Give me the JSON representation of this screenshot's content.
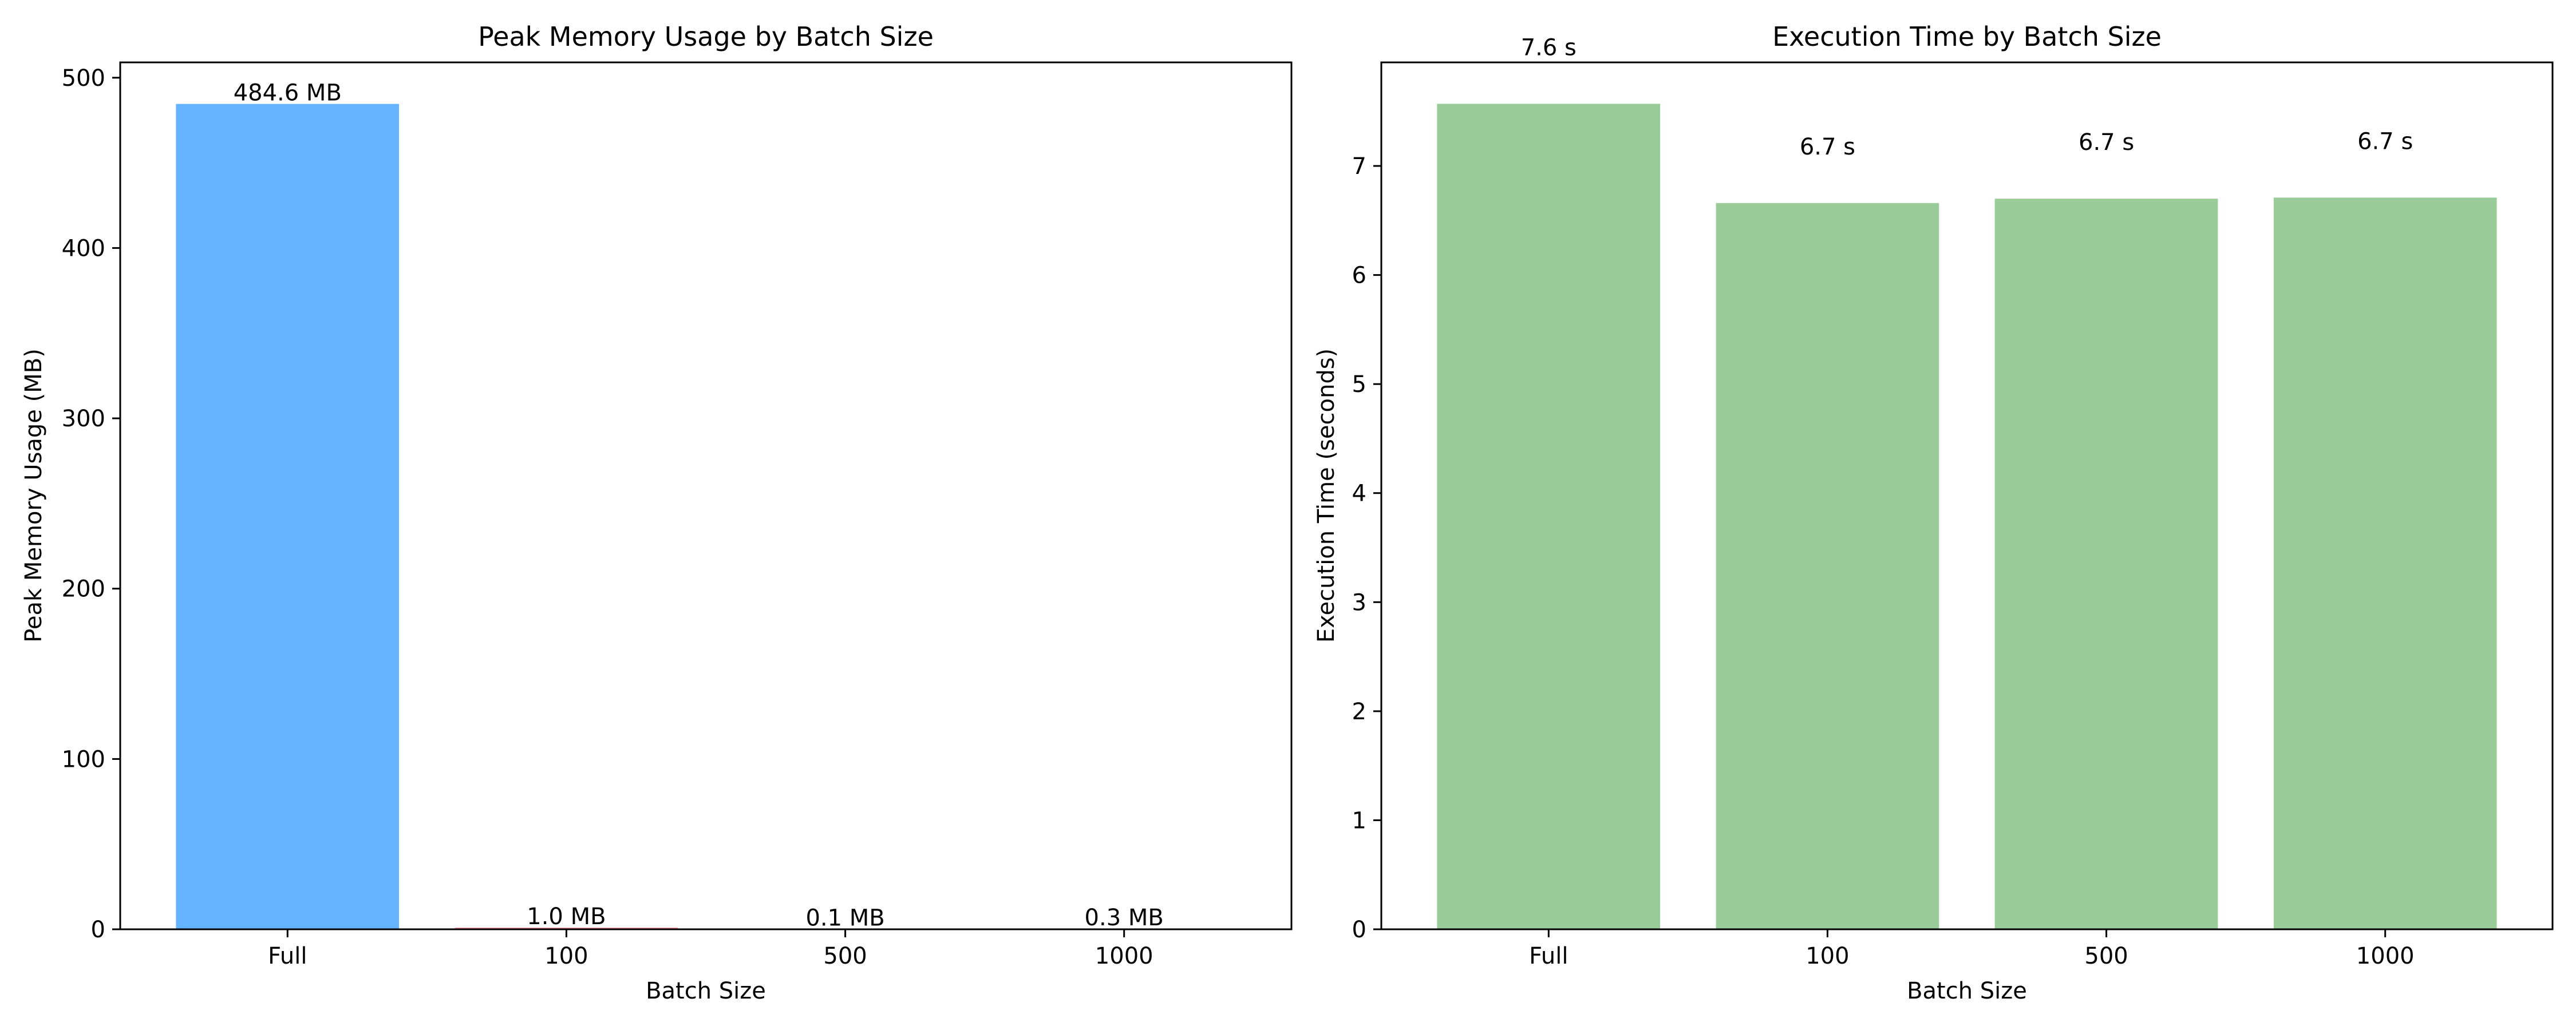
{
  "chart_data": [
    {
      "type": "bar",
      "title": "Peak Memory Usage by Batch Size",
      "xlabel": "Batch Size",
      "ylabel": "Peak Memory Usage (MB)",
      "categories": [
        "Full",
        "100",
        "500",
        "1000"
      ],
      "values": [
        484.6,
        1.0,
        0.1,
        0.3
      ],
      "data_labels": [
        "484.6 MB",
        "1.0 MB",
        "0.1 MB",
        "0.3 MB"
      ],
      "ylim": [
        0,
        509
      ],
      "yticks": [
        0,
        100,
        200,
        300,
        400,
        500
      ],
      "grid": false,
      "colors": [
        "#66b3ff",
        "#ff9999",
        "#99ff99",
        "#ffcc99"
      ]
    },
    {
      "type": "bar",
      "title": "Execution Time by Batch Size",
      "xlabel": "Batch Size",
      "ylabel": "Execution Time (seconds)",
      "categories": [
        "Full",
        "100",
        "500",
        "1000"
      ],
      "values": [
        7.57,
        6.66,
        6.7,
        6.71
      ],
      "data_labels": [
        "7.6 s",
        "6.7 s",
        "6.7 s",
        "6.7 s"
      ],
      "ylim": [
        0,
        7.95
      ],
      "yticks": [
        0,
        1,
        2,
        3,
        4,
        5,
        6,
        7
      ],
      "grid": false,
      "colors": [
        "#99cc99",
        "#99cc99",
        "#99cc99",
        "#99cc99"
      ]
    }
  ]
}
